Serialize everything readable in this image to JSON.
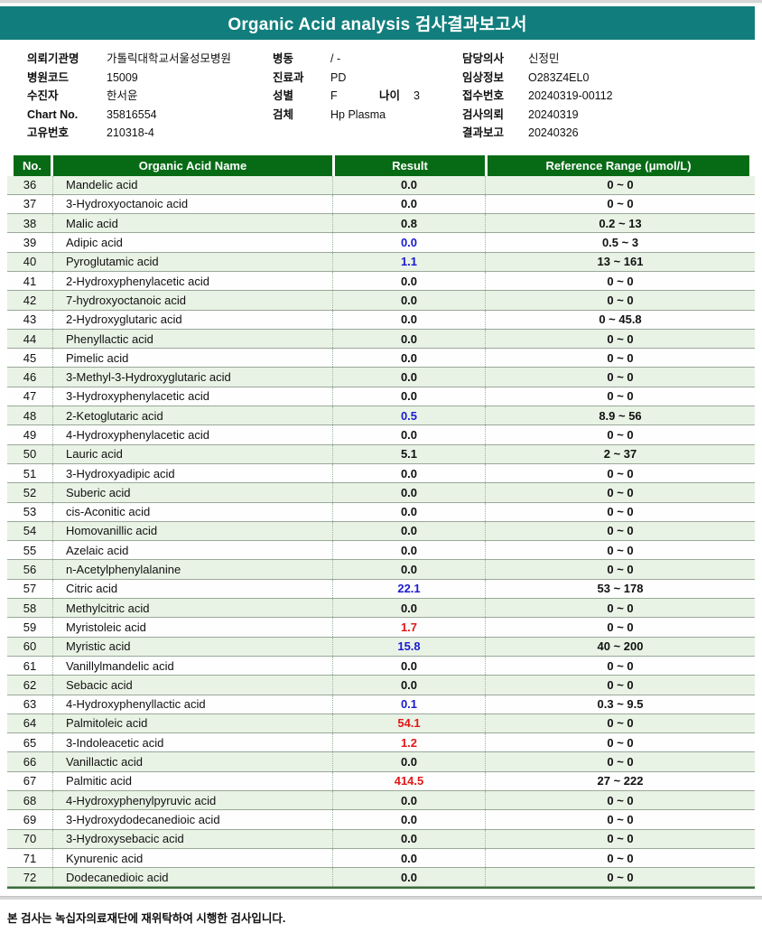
{
  "title": "Organic Acid analysis 검사결과보고서",
  "info": {
    "left": [
      {
        "label": "의뢰기관명",
        "value": "가톨릭대학교서울성모병원"
      },
      {
        "label": "병원코드",
        "value": "15009"
      },
      {
        "label": "수진자",
        "value": "한서윤"
      },
      {
        "label": "Chart No.",
        "value": "35816554"
      },
      {
        "label": "고유번호",
        "value": "210318-4"
      }
    ],
    "middle": {
      "ward_label": "병동",
      "ward_value": "/ -",
      "dept_label": "진료과",
      "dept_value": "PD",
      "sex_label": "성별",
      "sex_value": "F",
      "age_label": "나이",
      "age_value": "3",
      "specimen_label": "검체",
      "specimen_value": "Hp Plasma"
    },
    "right": [
      {
        "label": "담당의사",
        "value": "신정민"
      },
      {
        "label": "임상정보",
        "value": "O283Z4EL0"
      },
      {
        "label": "접수번호",
        "value": "20240319-00112"
      },
      {
        "label": "검사의뢰",
        "value": "20240319"
      },
      {
        "label": "결과보고",
        "value": "20240326"
      }
    ]
  },
  "table": {
    "headers": [
      "No.",
      "Organic Acid Name",
      "Result",
      "Reference Range (μmol/L)"
    ],
    "rows": [
      {
        "no": "36",
        "name": "Mandelic acid",
        "result": "0.0",
        "status": "normal",
        "range": "0 ~ 0"
      },
      {
        "no": "37",
        "name": "3-Hydroxyoctanoic acid",
        "result": "0.0",
        "status": "normal",
        "range": "0 ~ 0"
      },
      {
        "no": "38",
        "name": "Malic acid",
        "result": "0.8",
        "status": "normal",
        "range": "0.2 ~ 13"
      },
      {
        "no": "39",
        "name": "Adipic acid",
        "result": "0.0",
        "status": "low",
        "range": "0.5 ~ 3"
      },
      {
        "no": "40",
        "name": "Pyroglutamic acid",
        "result": "1.1",
        "status": "low",
        "range": "13 ~ 161"
      },
      {
        "no": "41",
        "name": "2-Hydroxyphenylacetic acid",
        "result": "0.0",
        "status": "normal",
        "range": "0 ~ 0"
      },
      {
        "no": "42",
        "name": "7-hydroxyoctanoic acid",
        "result": "0.0",
        "status": "normal",
        "range": "0 ~ 0"
      },
      {
        "no": "43",
        "name": "2-Hydroxyglutaric acid",
        "result": "0.0",
        "status": "normal",
        "range": "0 ~ 45.8"
      },
      {
        "no": "44",
        "name": "Phenyllactic acid",
        "result": "0.0",
        "status": "normal",
        "range": "0 ~ 0"
      },
      {
        "no": "45",
        "name": "Pimelic acid",
        "result": "0.0",
        "status": "normal",
        "range": "0 ~ 0"
      },
      {
        "no": "46",
        "name": "3-Methyl-3-Hydroxyglutaric acid",
        "result": "0.0",
        "status": "normal",
        "range": "0 ~ 0"
      },
      {
        "no": "47",
        "name": "3-Hydroxyphenylacetic acid",
        "result": "0.0",
        "status": "normal",
        "range": "0 ~ 0"
      },
      {
        "no": "48",
        "name": "2-Ketoglutaric acid",
        "result": "0.5",
        "status": "low",
        "range": "8.9 ~ 56"
      },
      {
        "no": "49",
        "name": "4-Hydroxyphenylacetic acid",
        "result": "0.0",
        "status": "normal",
        "range": "0 ~ 0"
      },
      {
        "no": "50",
        "name": "Lauric acid",
        "result": "5.1",
        "status": "normal",
        "range": "2 ~ 37"
      },
      {
        "no": "51",
        "name": "3-Hydroxyadipic acid",
        "result": "0.0",
        "status": "normal",
        "range": "0 ~ 0"
      },
      {
        "no": "52",
        "name": "Suberic acid",
        "result": "0.0",
        "status": "normal",
        "range": "0 ~ 0"
      },
      {
        "no": "53",
        "name": "cis-Aconitic acid",
        "result": "0.0",
        "status": "normal",
        "range": "0 ~ 0"
      },
      {
        "no": "54",
        "name": "Homovanillic acid",
        "result": "0.0",
        "status": "normal",
        "range": "0 ~ 0"
      },
      {
        "no": "55",
        "name": "Azelaic acid",
        "result": "0.0",
        "status": "normal",
        "range": "0 ~ 0"
      },
      {
        "no": "56",
        "name": "n-Acetylphenylalanine",
        "result": "0.0",
        "status": "normal",
        "range": "0 ~ 0"
      },
      {
        "no": "57",
        "name": "Citric acid",
        "result": "22.1",
        "status": "low",
        "range": "53 ~ 178"
      },
      {
        "no": "58",
        "name": "Methylcitric acid",
        "result": "0.0",
        "status": "normal",
        "range": "0 ~ 0"
      },
      {
        "no": "59",
        "name": "Myristoleic acid",
        "result": "1.7",
        "status": "high",
        "range": "0 ~ 0"
      },
      {
        "no": "60",
        "name": "Myristic acid",
        "result": "15.8",
        "status": "low",
        "range": "40 ~ 200"
      },
      {
        "no": "61",
        "name": "Vanillylmandelic acid",
        "result": "0.0",
        "status": "normal",
        "range": "0 ~ 0"
      },
      {
        "no": "62",
        "name": "Sebacic acid",
        "result": "0.0",
        "status": "normal",
        "range": "0 ~ 0"
      },
      {
        "no": "63",
        "name": "4-Hydroxyphenyllactic acid",
        "result": "0.1",
        "status": "low",
        "range": "0.3 ~ 9.5"
      },
      {
        "no": "64",
        "name": "Palmitoleic acid",
        "result": "54.1",
        "status": "high",
        "range": "0 ~ 0"
      },
      {
        "no": "65",
        "name": "3-Indoleacetic acid",
        "result": "1.2",
        "status": "high",
        "range": "0 ~ 0"
      },
      {
        "no": "66",
        "name": "Vanillactic acid",
        "result": "0.0",
        "status": "normal",
        "range": "0 ~ 0"
      },
      {
        "no": "67",
        "name": "Palmitic acid",
        "result": "414.5",
        "status": "high",
        "range": "27 ~ 222"
      },
      {
        "no": "68",
        "name": "4-Hydroxyphenylpyruvic acid",
        "result": "0.0",
        "status": "normal",
        "range": "0 ~ 0"
      },
      {
        "no": "69",
        "name": "3-Hydroxydodecanedioic acid",
        "result": "0.0",
        "status": "normal",
        "range": "0 ~ 0"
      },
      {
        "no": "70",
        "name": "3-Hydroxysebacic acid",
        "result": "0.0",
        "status": "normal",
        "range": "0 ~ 0"
      },
      {
        "no": "71",
        "name": "Kynurenic acid",
        "result": "0.0",
        "status": "normal",
        "range": "0 ~ 0"
      },
      {
        "no": "72",
        "name": "Dodecanedioic acid",
        "result": "0.0",
        "status": "normal",
        "range": "0 ~ 0"
      }
    ]
  },
  "footer": {
    "note": "본 검사는 녹십자의료재단에 재위탁하여 시행한 검사입니다."
  },
  "colors": {
    "banner_teal": "#117E7D",
    "table_header_green": "#076B15",
    "row_stripe_green": "#E9F3E5",
    "result_low_blue": "#1B1BD1",
    "result_high_red": "#E01818"
  }
}
